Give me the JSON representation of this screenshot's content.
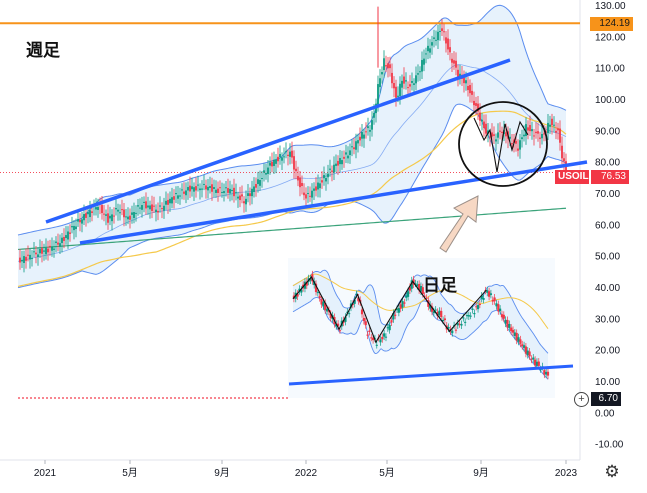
{
  "annotations": {
    "weekly_label": "週足",
    "daily_label": "日足"
  },
  "price_tags": {
    "high": {
      "value": "124.19",
      "color": "#f7931a",
      "text_color": "#1a1a1a"
    },
    "symbol": {
      "name": "USOIL",
      "value": "76.53",
      "color": "#f23645"
    },
    "volume": {
      "value": "6.70",
      "color": "#131722"
    }
  },
  "colors": {
    "up_candle": "#089981",
    "down_candle": "#f23645",
    "trend_line": "#2962ff",
    "band_line": "#5b8def",
    "band_fill": "#e3f0fc",
    "ma_yellow": "#f5c94a",
    "ma_green": "#3aa37a",
    "high_line": "#f7931a",
    "circle": "#111111",
    "arrow_fill": "#f7d8c4"
  },
  "icons": {
    "plus": "plus-circle-icon",
    "settings": "gear-icon"
  },
  "chart_data": [
    {
      "type": "candlestick",
      "timeframe": "週足",
      "symbol": "USOIL",
      "x_ticks": [
        "2021",
        "5月",
        "9月",
        "2022",
        "5月",
        "9月",
        "2023"
      ],
      "y_ticks": [
        "130.00",
        "120.00",
        "110.00",
        "100.00",
        "90.00",
        "80.00",
        "70.00",
        "60.00",
        "50.00",
        "40.00",
        "30.00",
        "20.00",
        "10.00",
        "0.00",
        "-10.00"
      ],
      "ylim": [
        -12,
        130
      ],
      "last_price": 76.53,
      "horizontal_line": 124.19,
      "volume": 6.7,
      "overlays": [
        "bollinger bands",
        "moving average (yellow)",
        "moving average (green)",
        "two upward trend lines",
        "circle around recent range"
      ],
      "close_path": [
        [
          0,
          48.2
        ],
        [
          8,
          50.5
        ],
        [
          16,
          52.3
        ],
        [
          22,
          54.8
        ],
        [
          28,
          59.5
        ],
        [
          34,
          63.0
        ],
        [
          40,
          66.2
        ],
        [
          45,
          61.5
        ],
        [
          50,
          65.0
        ],
        [
          55,
          61.8
        ],
        [
          62,
          66.5
        ],
        [
          70,
          64.5
        ],
        [
          78,
          68.8
        ],
        [
          86,
          71.5
        ],
        [
          94,
          72.0
        ],
        [
          100,
          70.8
        ],
        [
          106,
          71.0
        ],
        [
          113,
          67.4
        ],
        [
          116,
          70.0
        ],
        [
          120,
          73.5
        ],
        [
          126,
          79.0
        ],
        [
          131,
          81.5
        ],
        [
          136,
          83.0
        ],
        [
          140,
          74.0
        ],
        [
          144,
          68.5
        ],
        [
          148,
          71.0
        ],
        [
          152,
          74.0
        ],
        [
          158,
          78.5
        ],
        [
          164,
          82.0
        ],
        [
          168,
          85.0
        ],
        [
          172,
          88.5
        ],
        [
          176,
          91.0
        ],
        [
          178,
          95.0
        ],
        [
          180,
          104.0
        ],
        [
          183,
          112.0
        ],
        [
          186,
          109.0
        ],
        [
          189,
          100.0
        ],
        [
          192,
          106.0
        ],
        [
          196,
          104.0
        ],
        [
          200,
          108.0
        ],
        [
          204,
          115.0
        ],
        [
          208,
          119.0
        ],
        [
          212,
          122.5
        ],
        [
          216,
          114.0
        ],
        [
          220,
          108.0
        ],
        [
          224,
          105.0
        ],
        [
          228,
          99.0
        ],
        [
          231,
          94.0
        ],
        [
          234,
          89.5
        ],
        [
          238,
          87.5
        ],
        [
          242,
          90.0
        ],
        [
          246,
          87.0
        ],
        [
          250,
          84.5
        ],
        [
          254,
          91.0
        ],
        [
          258,
          89.0
        ],
        [
          262,
          88.0
        ],
        [
          266,
          92.5
        ],
        [
          270,
          89.5
        ],
        [
          272,
          82.0
        ],
        [
          274,
          76.5
        ]
      ]
    },
    {
      "type": "candlestick",
      "timeframe": "日足",
      "symbol": "USOIL",
      "note": "inset daily chart with bollinger bands, moving average, zigzag swing line and a rising support line",
      "close_path": [
        [
          0,
          112
        ],
        [
          10,
          117
        ],
        [
          20,
          122
        ],
        [
          30,
          111
        ],
        [
          40,
          105
        ],
        [
          50,
          98
        ],
        [
          60,
          106
        ],
        [
          70,
          114
        ],
        [
          80,
          97
        ],
        [
          90,
          92
        ],
        [
          100,
          95
        ],
        [
          110,
          105
        ],
        [
          120,
          110
        ],
        [
          130,
          120
        ],
        [
          140,
          116
        ],
        [
          150,
          107
        ],
        [
          160,
          105
        ],
        [
          170,
          97
        ],
        [
          180,
          100
        ],
        [
          190,
          104
        ],
        [
          200,
          108
        ],
        [
          210,
          116
        ],
        [
          220,
          110
        ],
        [
          230,
          102
        ],
        [
          240,
          96
        ],
        [
          250,
          90
        ],
        [
          260,
          84
        ],
        [
          270,
          80
        ],
        [
          277,
          76.5
        ]
      ]
    }
  ]
}
